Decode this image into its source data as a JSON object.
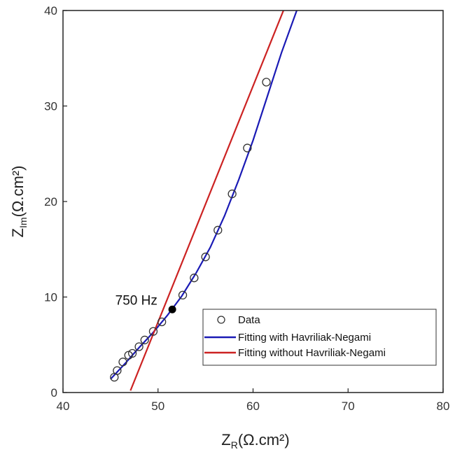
{
  "chart_data": {
    "type": "scatter",
    "xlabel": {
      "main": "Z",
      "sub": "R",
      "unit": "(Ω.cm²)"
    },
    "ylabel": {
      "main": "Z",
      "sub": "Im",
      "unit": "(Ω.cm²)"
    },
    "xlim": [
      40,
      80
    ],
    "ylim": [
      0,
      40
    ],
    "xticks": [
      40,
      50,
      60,
      70,
      80
    ],
    "yticks": [
      0,
      10,
      20,
      30,
      40
    ],
    "grid": false,
    "legend_position": "bottom-right",
    "series": [
      {
        "name": "Data",
        "kind": "markers",
        "marker": "open-circle",
        "color": "#333333",
        "points": [
          {
            "x": 45.4,
            "y": 1.6
          },
          {
            "x": 45.7,
            "y": 2.3
          },
          {
            "x": 46.3,
            "y": 3.2
          },
          {
            "x": 46.9,
            "y": 3.9
          },
          {
            "x": 47.3,
            "y": 4.1
          },
          {
            "x": 48.0,
            "y": 4.8
          },
          {
            "x": 48.6,
            "y": 5.5
          },
          {
            "x": 49.5,
            "y": 6.4
          },
          {
            "x": 50.4,
            "y": 7.4
          },
          {
            "x": 52.6,
            "y": 10.2
          },
          {
            "x": 53.8,
            "y": 12.0
          },
          {
            "x": 55.0,
            "y": 14.2
          },
          {
            "x": 56.3,
            "y": 17.0
          },
          {
            "x": 57.8,
            "y": 20.8
          },
          {
            "x": 59.4,
            "y": 25.6
          },
          {
            "x": 61.4,
            "y": 32.5
          }
        ]
      },
      {
        "name": "Fitting with Havriliak-Negami",
        "kind": "line",
        "color": "#1a1ab5",
        "points": [
          {
            "x": 45.0,
            "y": 1.4
          },
          {
            "x": 46.5,
            "y": 3.0
          },
          {
            "x": 48.0,
            "y": 4.7
          },
          {
            "x": 49.5,
            "y": 6.3
          },
          {
            "x": 51.0,
            "y": 8.1
          },
          {
            "x": 52.5,
            "y": 10.1
          },
          {
            "x": 54.0,
            "y": 12.5
          },
          {
            "x": 55.5,
            "y": 15.2
          },
          {
            "x": 57.0,
            "y": 18.5
          },
          {
            "x": 58.5,
            "y": 22.3
          },
          {
            "x": 60.0,
            "y": 26.4
          },
          {
            "x": 61.5,
            "y": 31.0
          },
          {
            "x": 63.0,
            "y": 35.6
          },
          {
            "x": 64.6,
            "y": 40.0
          }
        ]
      },
      {
        "name": "Fitting without Havriliak-Negami",
        "kind": "line",
        "color": "#cc2222",
        "points": [
          {
            "x": 47.1,
            "y": 0.2
          },
          {
            "x": 63.2,
            "y": 40.0
          }
        ]
      }
    ],
    "highlight": {
      "x": 51.5,
      "y": 8.7,
      "color": "#000000"
    },
    "annotations": [
      {
        "text": "750 Hz",
        "x": 45.5,
        "y": 9.2
      }
    ]
  }
}
